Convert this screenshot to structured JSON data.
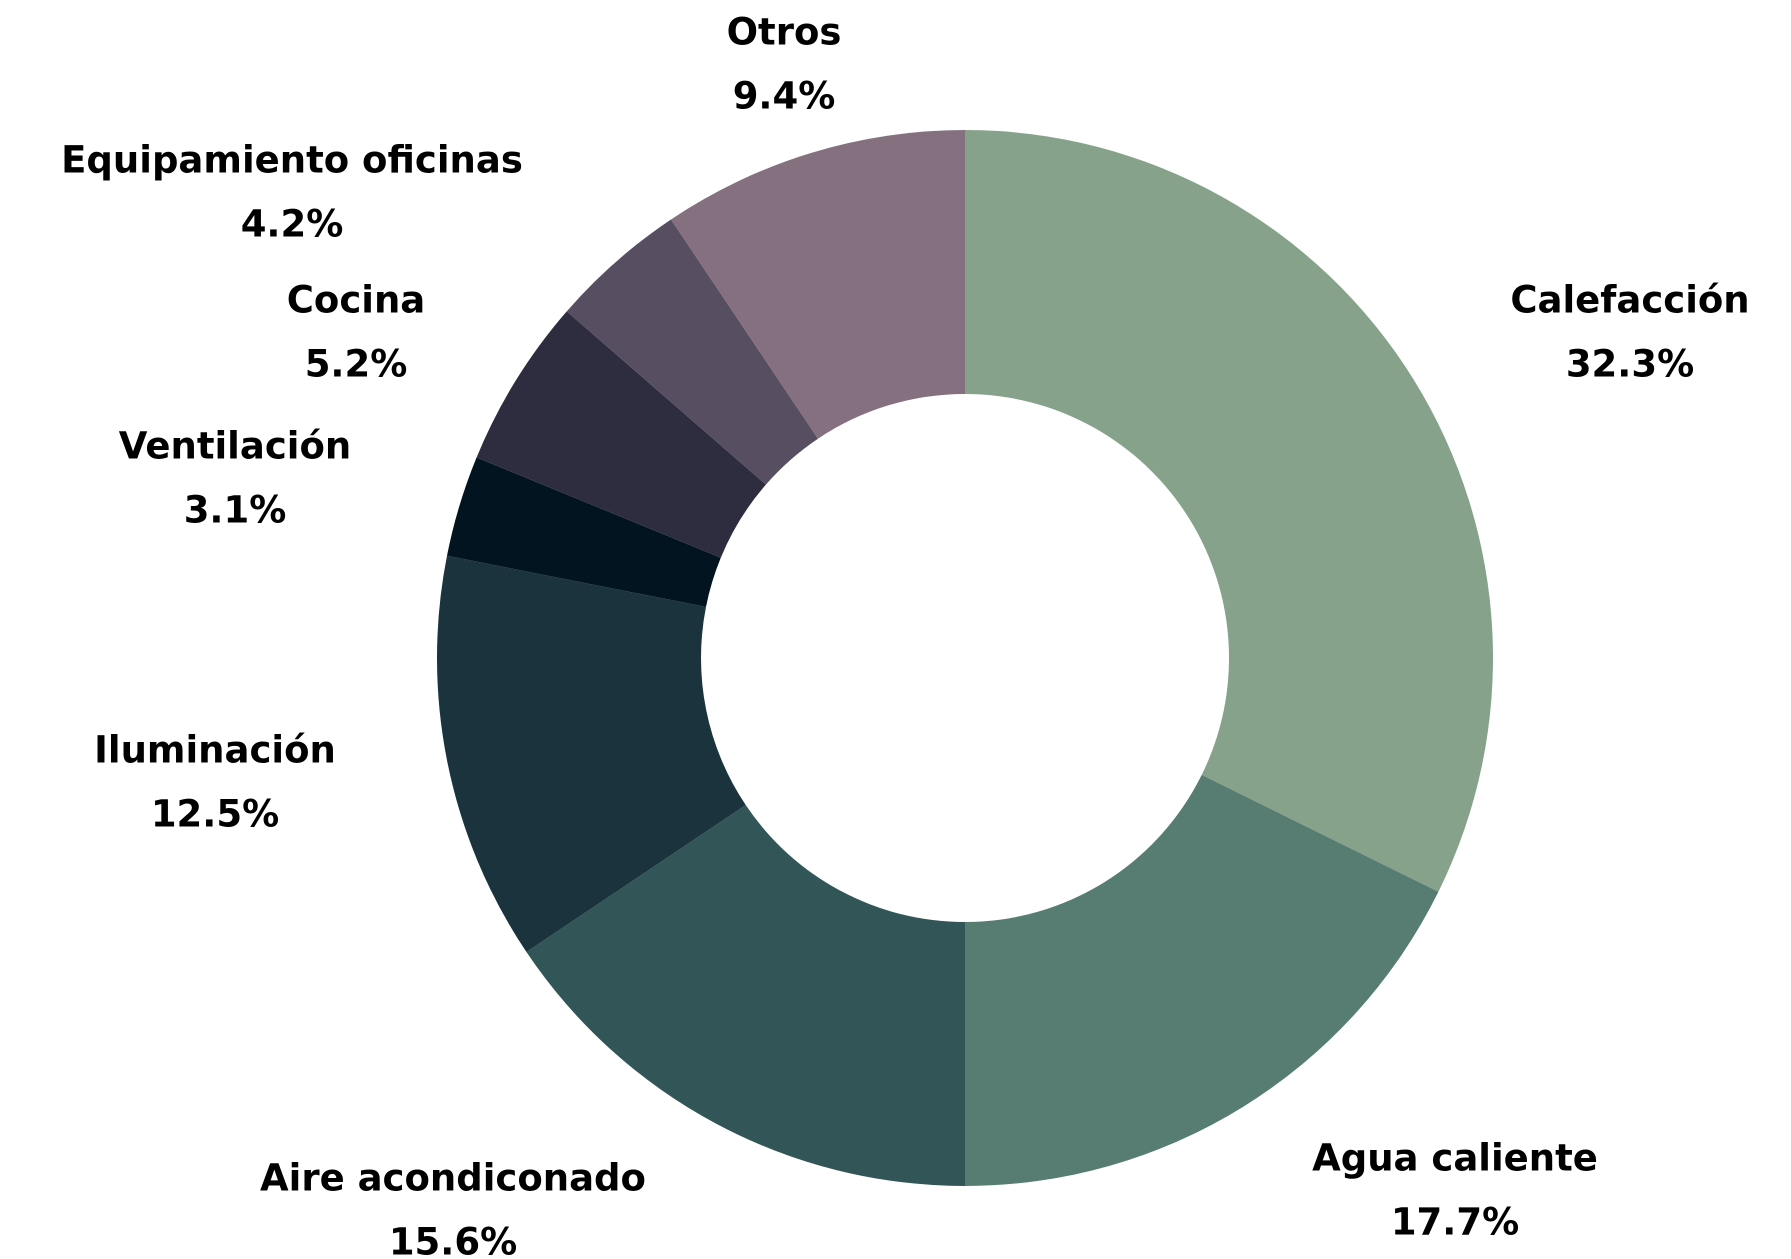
{
  "chart_data": {
    "type": "donut",
    "categories": [
      "Calefacción",
      "Agua caliente",
      "Aire acondiconado",
      "Iluminación",
      "Ventilación",
      "Cocina",
      "Equipamiento oficinas",
      "Otros"
    ],
    "values": [
      32.3,
      17.7,
      15.6,
      12.5,
      3.1,
      5.2,
      4.2,
      9.4
    ],
    "value_labels": [
      "32.3%",
      "17.7%",
      "15.6%",
      "12.5%",
      "3.1%",
      "5.2%",
      "4.2%",
      "9.4%"
    ],
    "colors": [
      "#86a28a",
      "#577c71",
      "#325557",
      "#1a333d",
      "#011420",
      "#2d2d3f",
      "#574e61",
      "#84707f"
    ]
  }
}
